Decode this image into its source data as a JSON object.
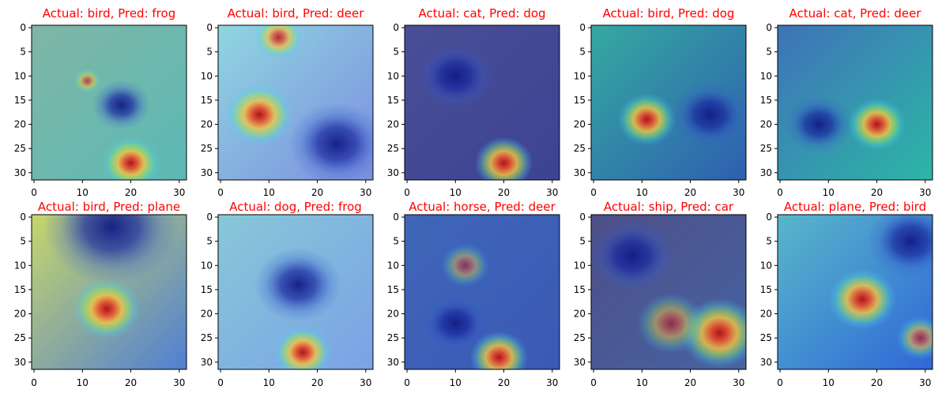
{
  "colors": {
    "title": "#ff0000",
    "axis": "#000000"
  },
  "chart_data": [
    {
      "type": "heatmap",
      "title": "Actual: bird, Pred: frog",
      "xlim": [
        -0.5,
        31.5
      ],
      "ylim": [
        31.5,
        -0.5
      ],
      "xticks": [
        0,
        10,
        20,
        30
      ],
      "yticks": [
        0,
        5,
        10,
        15,
        20,
        25,
        30
      ],
      "xtick_labels": [
        "0",
        "10",
        "20",
        "30"
      ],
      "ytick_labels": [
        "0",
        "5",
        "10",
        "15",
        "20",
        "25",
        "30"
      ],
      "base": [
        "#7fb6a5",
        "#5cb9b6"
      ],
      "hotspots": [
        {
          "x": 20,
          "y": 28,
          "r": 6,
          "level": 1.0
        },
        {
          "x": 11,
          "y": 11,
          "r": 3,
          "level": 0.65
        }
      ],
      "coldspots": [
        {
          "x": 18,
          "y": 16,
          "r": 6
        }
      ]
    },
    {
      "type": "heatmap",
      "title": "Actual: bird, Pred: deer",
      "xlim": [
        -0.5,
        31.5
      ],
      "ylim": [
        31.5,
        -0.5
      ],
      "xticks": [
        0,
        10,
        20,
        30
      ],
      "yticks": [
        0,
        5,
        10,
        15,
        20,
        25,
        30
      ],
      "xtick_labels": [
        "0",
        "10",
        "20",
        "30"
      ],
      "ytick_labels": [
        "0",
        "5",
        "10",
        "15",
        "20",
        "25",
        "30"
      ],
      "base": [
        "#8fd6e0",
        "#7c8ee0"
      ],
      "hotspots": [
        {
          "x": 8,
          "y": 18,
          "r": 7,
          "level": 1.0
        },
        {
          "x": 12,
          "y": 2,
          "r": 5,
          "level": 0.85
        }
      ],
      "coldspots": [
        {
          "x": 24,
          "y": 24,
          "r": 10
        }
      ]
    },
    {
      "type": "heatmap",
      "title": "Actual: cat, Pred: dog",
      "xlim": [
        -0.5,
        31.5
      ],
      "ylim": [
        31.5,
        -0.5
      ],
      "xticks": [
        0,
        10,
        20,
        30
      ],
      "yticks": [
        0,
        5,
        10,
        15,
        20,
        25,
        30
      ],
      "xtick_labels": [
        "0",
        "10",
        "20",
        "30"
      ],
      "ytick_labels": [
        "0",
        "5",
        "10",
        "15",
        "20",
        "25",
        "30"
      ],
      "base": [
        "#4a4e95",
        "#3d4394"
      ],
      "hotspots": [
        {
          "x": 20,
          "y": 28,
          "r": 6,
          "level": 1.0
        }
      ],
      "coldspots": [
        {
          "x": 10,
          "y": 10,
          "r": 8
        }
      ]
    },
    {
      "type": "heatmap",
      "title": "Actual: bird, Pred: dog",
      "xlim": [
        -0.5,
        31.5
      ],
      "ylim": [
        31.5,
        -0.5
      ],
      "xticks": [
        0,
        10,
        20,
        30
      ],
      "yticks": [
        0,
        5,
        10,
        15,
        20,
        25,
        30
      ],
      "xtick_labels": [
        "0",
        "10",
        "20",
        "30"
      ],
      "ytick_labels": [
        "0",
        "5",
        "10",
        "15",
        "20",
        "25",
        "30"
      ],
      "base": [
        "#35a9a0",
        "#2e5fb0"
      ],
      "hotspots": [
        {
          "x": 11,
          "y": 19,
          "r": 6,
          "level": 1.0
        }
      ],
      "coldspots": [
        {
          "x": 24,
          "y": 18,
          "r": 8
        }
      ]
    },
    {
      "type": "heatmap",
      "title": "Actual: cat, Pred: deer",
      "xlim": [
        -0.5,
        31.5
      ],
      "ylim": [
        31.5,
        -0.5
      ],
      "xticks": [
        0,
        10,
        20,
        30
      ],
      "yticks": [
        0,
        5,
        10,
        15,
        20,
        25,
        30
      ],
      "xtick_labels": [
        "0",
        "10",
        "20",
        "30"
      ],
      "ytick_labels": [
        "0",
        "5",
        "10",
        "15",
        "20",
        "25",
        "30"
      ],
      "base": [
        "#3e73b8",
        "#2db6a6"
      ],
      "hotspots": [
        {
          "x": 20,
          "y": 20,
          "r": 6,
          "level": 1.0
        }
      ],
      "coldspots": [
        {
          "x": 8,
          "y": 20,
          "r": 7
        }
      ]
    },
    {
      "type": "heatmap",
      "title": "Actual: bird, Pred: plane",
      "xlim": [
        -0.5,
        31.5
      ],
      "ylim": [
        31.5,
        -0.5
      ],
      "xticks": [
        0,
        10,
        20,
        30
      ],
      "yticks": [
        0,
        5,
        10,
        15,
        20,
        25,
        30
      ],
      "xtick_labels": [
        "0",
        "10",
        "20",
        "30"
      ],
      "ytick_labels": [
        "0",
        "5",
        "10",
        "15",
        "20",
        "25",
        "30"
      ],
      "base": [
        "#c7d66a",
        "#4f7fd4"
      ],
      "hotspots": [
        {
          "x": 15,
          "y": 19,
          "r": 7,
          "level": 1.0
        }
      ],
      "coldspots": [
        {
          "x": 16,
          "y": 2,
          "r": 14
        }
      ]
    },
    {
      "type": "heatmap",
      "title": "Actual: dog, Pred: frog",
      "xlim": [
        -0.5,
        31.5
      ],
      "ylim": [
        31.5,
        -0.5
      ],
      "xticks": [
        0,
        10,
        20,
        30
      ],
      "yticks": [
        0,
        5,
        10,
        15,
        20,
        25,
        30
      ],
      "xtick_labels": [
        "0",
        "10",
        "20",
        "30"
      ],
      "ytick_labels": [
        "0",
        "5",
        "10",
        "15",
        "20",
        "25",
        "30"
      ],
      "base": [
        "#87c8d8",
        "#7ba2e6"
      ],
      "hotspots": [
        {
          "x": 17,
          "y": 28,
          "r": 6,
          "level": 1.0
        }
      ],
      "coldspots": [
        {
          "x": 16,
          "y": 14,
          "r": 9
        }
      ]
    },
    {
      "type": "heatmap",
      "title": "Actual: horse, Pred: deer",
      "xlim": [
        -0.5,
        31.5
      ],
      "ylim": [
        31.5,
        -0.5
      ],
      "xticks": [
        0,
        10,
        20,
        30
      ],
      "yticks": [
        0,
        5,
        10,
        15,
        20,
        25,
        30
      ],
      "xtick_labels": [
        "0",
        "10",
        "20",
        "30"
      ],
      "ytick_labels": [
        "0",
        "5",
        "10",
        "15",
        "20",
        "25",
        "30"
      ],
      "base": [
        "#3f66b9",
        "#3b59b5"
      ],
      "hotspots": [
        {
          "x": 19,
          "y": 29,
          "r": 6,
          "level": 1.0
        },
        {
          "x": 12,
          "y": 10,
          "r": 5,
          "level": 0.55
        }
      ],
      "coldspots": [
        {
          "x": 10,
          "y": 22,
          "r": 7
        }
      ]
    },
    {
      "type": "heatmap",
      "title": "Actual: ship, Pred: car",
      "xlim": [
        -0.5,
        31.5
      ],
      "ylim": [
        31.5,
        -0.5
      ],
      "xticks": [
        0,
        10,
        20,
        30
      ],
      "yticks": [
        0,
        5,
        10,
        15,
        20,
        25,
        30
      ],
      "xtick_labels": [
        "0",
        "10",
        "20",
        "30"
      ],
      "ytick_labels": [
        "0",
        "5",
        "10",
        "15",
        "20",
        "25",
        "30"
      ],
      "base": [
        "#4f4f87",
        "#4563a3"
      ],
      "hotspots": [
        {
          "x": 26,
          "y": 24,
          "r": 8,
          "level": 1.0
        },
        {
          "x": 16,
          "y": 22,
          "r": 7,
          "level": 0.6
        }
      ],
      "coldspots": [
        {
          "x": 8,
          "y": 8,
          "r": 9
        }
      ]
    },
    {
      "type": "heatmap",
      "title": "Actual: plane, Pred: bird",
      "xlim": [
        -0.5,
        31.5
      ],
      "ylim": [
        31.5,
        -0.5
      ],
      "xticks": [
        0,
        10,
        20,
        30
      ],
      "yticks": [
        0,
        5,
        10,
        15,
        20,
        25,
        30
      ],
      "xtick_labels": [
        "0",
        "10",
        "20",
        "30"
      ],
      "ytick_labels": [
        "0",
        "5",
        "10",
        "15",
        "20",
        "25",
        "30"
      ],
      "base": [
        "#58b7c9",
        "#2f67d8"
      ],
      "hotspots": [
        {
          "x": 17,
          "y": 17,
          "r": 7,
          "level": 1.0
        },
        {
          "x": 29,
          "y": 25,
          "r": 5,
          "level": 0.7
        }
      ],
      "coldspots": [
        {
          "x": 27,
          "y": 5,
          "r": 9
        }
      ]
    }
  ]
}
